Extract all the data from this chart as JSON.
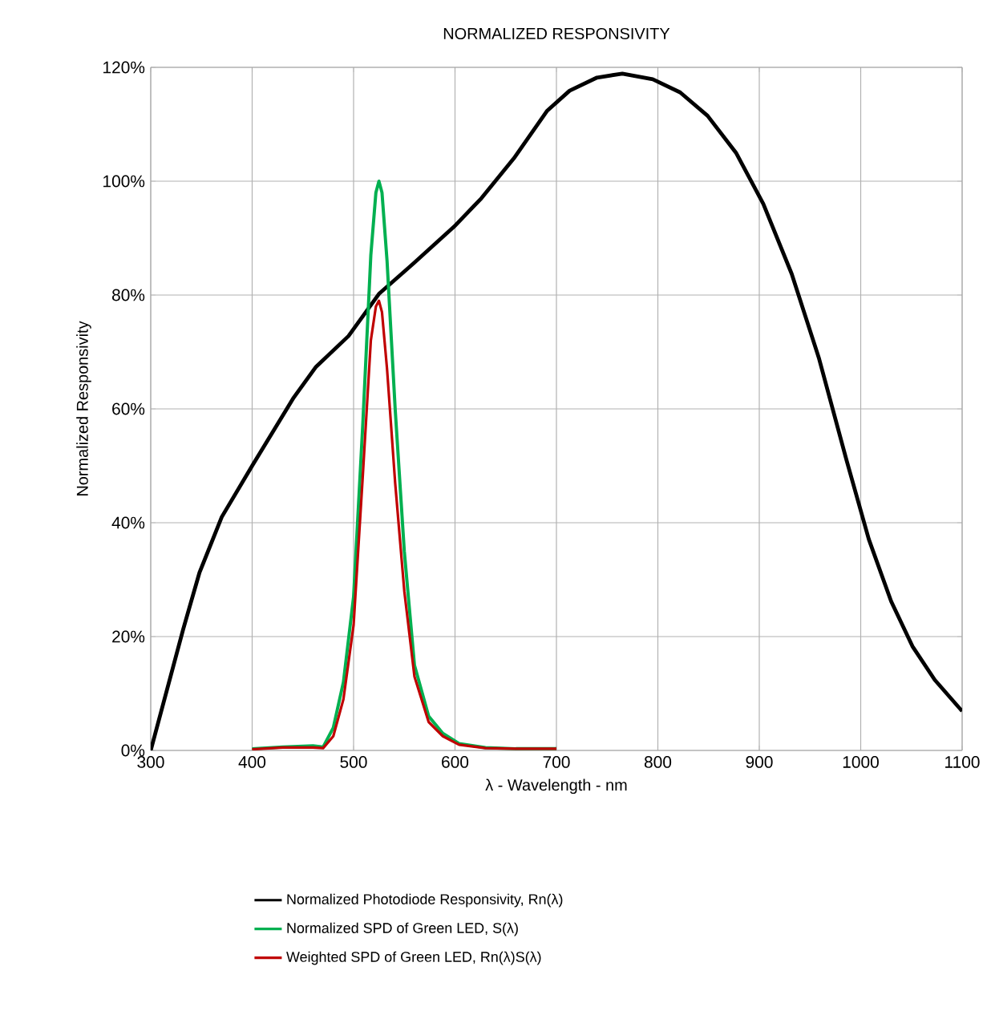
{
  "chart_data": {
    "type": "line",
    "title": "NORMALIZED RESPONSIVITY",
    "xlabel": "λ - Wavelength - nm",
    "ylabel": "Normalized Responsivity",
    "xlim": [
      300,
      1100
    ],
    "xticks": [
      300,
      400,
      500,
      600,
      700,
      800,
      900,
      1000,
      1100
    ],
    "ylim": [
      0,
      120
    ],
    "yticks": [
      {
        "value": 0,
        "label": "0%"
      },
      {
        "value": 20,
        "label": "20%"
      },
      {
        "value": 40,
        "label": "40%"
      },
      {
        "value": 60,
        "label": "60%"
      },
      {
        "value": 80,
        "label": "80%"
      },
      {
        "value": 100,
        "label": "100%"
      },
      {
        "value": 120,
        "label": "120%"
      }
    ],
    "grid": true,
    "legend": "bottom",
    "marker": "none",
    "line_style": "solid",
    "series": [
      {
        "name": "Normalized Photodiode Responsivity, Rn(λ)",
        "color": "#000000",
        "x": [
          300,
          332,
          348,
          370,
          400,
          441,
          463,
          495,
          525,
          560,
          599,
          626,
          658,
          691,
          713,
          740,
          765,
          795,
          822,
          849,
          877,
          904,
          932,
          959,
          986,
          1008,
          1030,
          1051,
          1073,
          1100
        ],
        "values": [
          0,
          21.3,
          31.2,
          41,
          50,
          62,
          67.4,
          72.8,
          80.2,
          85.7,
          92,
          97,
          104,
          112.4,
          115.9,
          118.2,
          118.9,
          117.9,
          115.6,
          111.5,
          105,
          96,
          83.7,
          68.8,
          51,
          37.1,
          26.2,
          18.3,
          12.4,
          6.9
        ]
      },
      {
        "name": "Normalized SPD of Green LED, S(λ)",
        "color": "#00b050",
        "x": [
          400,
          430,
          460,
          470,
          480,
          490,
          500,
          509,
          517,
          522,
          525,
          528,
          533,
          541,
          550,
          560,
          574,
          588,
          604,
          630,
          660,
          700
        ],
        "values": [
          0.3,
          0.6,
          0.8,
          0.6,
          4,
          12,
          27,
          57,
          87,
          98,
          100,
          98,
          86,
          60,
          35,
          15,
          6,
          3,
          1.2,
          0.5,
          0.3,
          0.3
        ]
      },
      {
        "name": "Weighted SPD of Green LED, Rn(λ)S(λ)",
        "color": "#c00000",
        "x": [
          400,
          430,
          460,
          470,
          480,
          490,
          500,
          509,
          517,
          522,
          525,
          528,
          533,
          541,
          550,
          560,
          574,
          588,
          604,
          630,
          660,
          700
        ],
        "values": [
          0.2,
          0.5,
          0.5,
          0.4,
          2.5,
          9,
          22,
          48,
          72,
          78,
          79,
          77,
          67,
          47,
          28,
          13,
          5,
          2.5,
          1,
          0.4,
          0.3,
          0.3
        ]
      }
    ]
  }
}
